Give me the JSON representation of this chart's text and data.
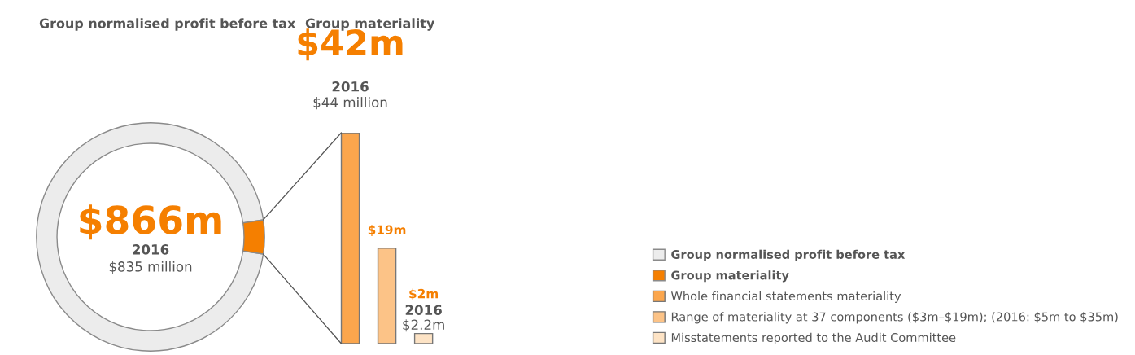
{
  "chart_data": [
    {
      "type": "donut",
      "title": "Group normalised profit before tax",
      "categories": [
        "Group normalised profit before tax",
        "Group materiality"
      ],
      "values": [
        95.2,
        4.8
      ],
      "colors": [
        "#ececec",
        "#f57f00"
      ],
      "annotations": [
        "$866m",
        "2016",
        "$835 million"
      ],
      "legend": "right"
    },
    {
      "type": "bar",
      "title": "Group materiality",
      "categories": [
        null,
        null,
        null
      ],
      "series": [
        {
          "name": "Whole financial statements materiality",
          "color": "#fba64d",
          "values": [
            42,
            null,
            null
          ],
          "value_labels": [
            "$42m",
            null,
            null
          ]
        },
        {
          "name": "Range of materiality at 37 components ($3m–$19m); (2016: $5m to $35m)",
          "color": "#fcc387",
          "values": [
            null,
            19,
            null
          ],
          "value_labels": [
            null,
            "$19m",
            null
          ]
        },
        {
          "name": "Misstatements reported to the Audit Committee",
          "color": "#fde3c5",
          "values": [
            null,
            null,
            2
          ],
          "value_labels": [
            null,
            null,
            "$2m"
          ]
        }
      ],
      "annotations": [
        "2016",
        "$44 million",
        "2016",
        "$2.2m"
      ],
      "legend": "right",
      "stacked": true
    }
  ]
}
